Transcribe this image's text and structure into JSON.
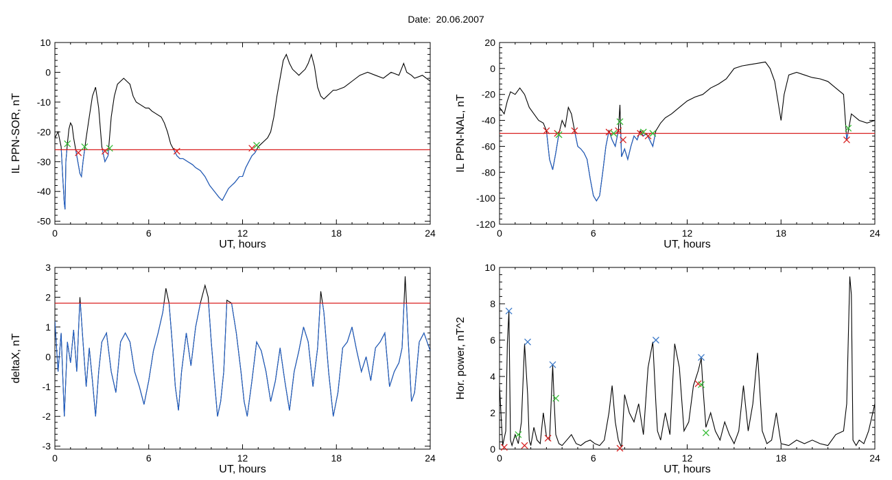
{
  "title": "Date:  20.06.2007",
  "colors": {
    "trace": "#000000",
    "below_threshold": "#1f5fc8",
    "threshold": "#d81e1e",
    "marker_red": "#d81e1e",
    "marker_green": "#33bb33",
    "marker_blue": "#3a78c8"
  },
  "chart_data": [
    {
      "type": "line",
      "xlabel": "UT, hours",
      "ylabel": "IL PPN-SOR, nT",
      "xlim": [
        0,
        24
      ],
      "ylim": [
        -51,
        10
      ],
      "xticks": [
        0,
        6,
        12,
        18,
        24
      ],
      "yticks": [
        -50,
        -40,
        -30,
        -20,
        -10,
        0,
        10
      ],
      "threshold": -26,
      "grid": false,
      "series": [
        {
          "x": [
            0,
            0.2,
            0.4,
            0.5,
            0.6,
            0.65,
            0.7,
            0.8,
            0.9,
            1.0,
            1.1,
            1.2,
            1.4,
            1.6,
            1.7,
            1.8,
            2.0,
            2.2,
            2.4,
            2.6,
            2.8,
            3.0,
            3.2,
            3.4,
            3.6,
            3.8,
            4.0,
            4.2,
            4.4,
            4.6,
            4.8,
            5.0,
            5.2,
            5.5,
            5.8,
            6.0,
            6.2,
            6.5,
            6.8,
            7.0,
            7.2,
            7.4,
            7.6,
            7.8,
            8.0,
            8.2,
            8.5,
            8.8,
            9.0,
            9.3,
            9.6,
            9.9,
            10.2,
            10.5,
            10.7,
            10.9,
            11.1,
            11.3,
            11.5,
            11.8,
            12.0,
            12.2,
            12.4,
            12.6,
            12.8,
            13.0,
            13.2,
            13.4,
            13.6,
            13.8,
            14.0,
            14.2,
            14.4,
            14.6,
            14.8,
            15.0,
            15.2,
            15.4,
            15.6,
            15.8,
            16.0,
            16.2,
            16.4,
            16.6,
            16.8,
            17.0,
            17.2,
            17.4,
            17.6,
            17.8,
            18.0,
            18.5,
            19.0,
            19.5,
            20.0,
            20.5,
            21.0,
            21.5,
            22.0,
            22.3,
            22.5,
            22.8,
            23.0,
            23.5,
            24.0
          ],
          "y": [
            -22,
            -20,
            -25,
            -35,
            -44,
            -46,
            -30,
            -24,
            -19,
            -17,
            -18,
            -22,
            -28,
            -34,
            -35,
            -30,
            -22,
            -15,
            -8,
            -5,
            -12,
            -25,
            -30,
            -28,
            -15,
            -8,
            -4,
            -3,
            -2,
            -3,
            -4,
            -8,
            -10,
            -11,
            -12,
            -12,
            -13,
            -14,
            -15,
            -17,
            -20,
            -24,
            -26,
            -28,
            -29,
            -29,
            -30,
            -31,
            -32,
            -33,
            -35,
            -38,
            -40,
            -42,
            -43,
            -41,
            -39,
            -38,
            -37,
            -35,
            -35,
            -32,
            -30,
            -28,
            -27,
            -25,
            -24,
            -23,
            -22,
            -20,
            -15,
            -8,
            -2,
            4,
            6,
            3,
            1,
            0,
            -1,
            0,
            1,
            3,
            6,
            2,
            -5,
            -8,
            -9,
            -8,
            -7,
            -6,
            -6,
            -5,
            -3,
            -1,
            0,
            -1,
            -2,
            0,
            -1,
            3,
            0,
            -1,
            -2,
            -1,
            -3
          ]
        }
      ],
      "markers": [
        {
          "x": 0.8,
          "y": -24,
          "color": "green"
        },
        {
          "x": 1.5,
          "y": -27,
          "color": "red"
        },
        {
          "x": 1.9,
          "y": -25,
          "color": "green"
        },
        {
          "x": 3.2,
          "y": -26.5,
          "color": "red"
        },
        {
          "x": 3.5,
          "y": -25.5,
          "color": "green"
        },
        {
          "x": 7.8,
          "y": -26.5,
          "color": "red"
        },
        {
          "x": 12.6,
          "y": -25.5,
          "color": "red"
        },
        {
          "x": 12.9,
          "y": -24.5,
          "color": "green"
        }
      ]
    },
    {
      "type": "line",
      "xlabel": "UT, hours",
      "ylabel": "IL PPN-NAL, nT",
      "xlim": [
        0,
        24
      ],
      "ylim": [
        -120,
        20
      ],
      "xticks": [
        0,
        6,
        12,
        18,
        24
      ],
      "yticks": [
        -120,
        -100,
        -80,
        -60,
        -40,
        -20,
        0,
        20
      ],
      "threshold": -50,
      "grid": false,
      "series": [
        {
          "x": [
            0,
            0.3,
            0.5,
            0.7,
            1.0,
            1.3,
            1.6,
            1.9,
            2.2,
            2.5,
            2.8,
            3.0,
            3.2,
            3.4,
            3.6,
            3.8,
            4.0,
            4.2,
            4.4,
            4.6,
            4.8,
            5.0,
            5.2,
            5.4,
            5.6,
            5.8,
            6.0,
            6.2,
            6.4,
            6.6,
            6.8,
            7.0,
            7.2,
            7.4,
            7.6,
            7.7,
            7.8,
            8.0,
            8.2,
            8.4,
            8.6,
            8.8,
            9.0,
            9.2,
            9.4,
            9.6,
            9.8,
            10.0,
            10.3,
            10.6,
            11.0,
            11.5,
            12.0,
            12.5,
            13.0,
            13.5,
            14.0,
            14.5,
            15.0,
            15.5,
            16.0,
            16.5,
            17.0,
            17.3,
            17.6,
            17.8,
            18.0,
            18.2,
            18.5,
            19.0,
            19.5,
            20.0,
            20.5,
            21.0,
            21.5,
            22.0,
            22.2,
            22.5,
            23.0,
            23.5,
            24.0
          ],
          "y": [
            -30,
            -35,
            -25,
            -18,
            -20,
            -15,
            -20,
            -30,
            -35,
            -40,
            -42,
            -48,
            -70,
            -78,
            -65,
            -50,
            -40,
            -45,
            -30,
            -35,
            -48,
            -60,
            -62,
            -65,
            -70,
            -85,
            -98,
            -102,
            -98,
            -80,
            -60,
            -48,
            -55,
            -60,
            -48,
            -28,
            -68,
            -62,
            -70,
            -60,
            -52,
            -55,
            -48,
            -52,
            -50,
            -55,
            -60,
            -48,
            -42,
            -38,
            -35,
            -30,
            -25,
            -22,
            -20,
            -15,
            -12,
            -8,
            0,
            2,
            3,
            4,
            5,
            0,
            -10,
            -25,
            -40,
            -20,
            -5,
            -3,
            -5,
            -7,
            -8,
            -10,
            -15,
            -20,
            -55,
            -35,
            -40,
            -42,
            -40
          ]
        }
      ],
      "markers": [
        {
          "x": 3.0,
          "y": -48,
          "color": "red"
        },
        {
          "x": 3.7,
          "y": -50,
          "color": "red"
        },
        {
          "x": 3.8,
          "y": -51,
          "color": "green"
        },
        {
          "x": 4.8,
          "y": -48,
          "color": "red"
        },
        {
          "x": 7.0,
          "y": -49,
          "color": "red"
        },
        {
          "x": 7.3,
          "y": -50,
          "color": "green"
        },
        {
          "x": 7.6,
          "y": -48,
          "color": "red"
        },
        {
          "x": 7.7,
          "y": -41,
          "color": "green"
        },
        {
          "x": 7.9,
          "y": -55,
          "color": "red"
        },
        {
          "x": 9.0,
          "y": -50,
          "color": "red"
        },
        {
          "x": 9.2,
          "y": -49,
          "color": "green"
        },
        {
          "x": 9.5,
          "y": -52,
          "color": "red"
        },
        {
          "x": 9.8,
          "y": -50,
          "color": "green"
        },
        {
          "x": 22.2,
          "y": -55,
          "color": "red"
        },
        {
          "x": 22.3,
          "y": -46,
          "color": "green"
        }
      ]
    },
    {
      "type": "line",
      "xlabel": "UT, hours",
      "ylabel": "deltaX, nT",
      "xlim": [
        0,
        24
      ],
      "ylim": [
        -3.1,
        3
      ],
      "xticks": [
        0,
        6,
        12,
        18,
        24
      ],
      "yticks": [
        -3,
        -2,
        -1,
        0,
        1,
        2,
        3
      ],
      "threshold": 1.8,
      "grid": false,
      "series": [
        {
          "x": [
            0,
            0.2,
            0.4,
            0.6,
            0.8,
            1.0,
            1.2,
            1.4,
            1.6,
            1.8,
            2.0,
            2.2,
            2.4,
            2.6,
            2.8,
            3.0,
            3.3,
            3.6,
            3.9,
            4.2,
            4.5,
            4.8,
            5.1,
            5.4,
            5.7,
            6.0,
            6.3,
            6.6,
            6.9,
            7.1,
            7.3,
            7.5,
            7.7,
            7.9,
            8.1,
            8.4,
            8.7,
            9.0,
            9.3,
            9.6,
            9.8,
            10.0,
            10.2,
            10.4,
            10.6,
            10.8,
            11.0,
            11.3,
            11.6,
            11.9,
            12.1,
            12.3,
            12.6,
            12.9,
            13.2,
            13.5,
            13.8,
            14.1,
            14.4,
            14.7,
            15.0,
            15.3,
            15.6,
            15.9,
            16.2,
            16.5,
            16.8,
            17.0,
            17.2,
            17.5,
            17.8,
            18.1,
            18.4,
            18.7,
            19.0,
            19.3,
            19.6,
            19.9,
            20.2,
            20.5,
            20.8,
            21.1,
            21.4,
            21.7,
            22.0,
            22.2,
            22.4,
            22.6,
            22.8,
            23.0,
            23.3,
            23.6,
            24.0
          ],
          "y": [
            1.2,
            -0.5,
            0.8,
            -2.0,
            0.5,
            -0.2,
            0.9,
            -0.5,
            2.0,
            0.5,
            -1.0,
            0.3,
            -0.8,
            -2.0,
            -0.5,
            0.5,
            0.8,
            -0.5,
            -1.2,
            0.5,
            0.8,
            0.5,
            -0.5,
            -1.0,
            -1.6,
            -0.8,
            0.2,
            0.8,
            1.5,
            2.3,
            1.8,
            0.5,
            -1.0,
            -1.8,
            -0.5,
            0.8,
            -0.3,
            1.0,
            1.8,
            2.4,
            2.0,
            0.5,
            -0.8,
            -2.0,
            -1.5,
            -0.5,
            1.9,
            1.8,
            0.8,
            -0.5,
            -1.5,
            -2.0,
            -0.8,
            0.5,
            0.2,
            -0.5,
            -1.5,
            -0.8,
            0.3,
            -0.8,
            -1.8,
            -0.5,
            0.2,
            1.0,
            0.5,
            -1.0,
            0.3,
            2.2,
            1.5,
            -0.5,
            -2.0,
            -1.2,
            0.3,
            0.5,
            1.0,
            0.2,
            -0.5,
            0.0,
            -0.8,
            0.3,
            0.5,
            0.8,
            -1.0,
            -0.5,
            -0.2,
            0.3,
            2.7,
            0.5,
            -1.5,
            -1.2,
            0.5,
            0.8,
            0.2
          ]
        }
      ],
      "markers": []
    },
    {
      "type": "line",
      "xlabel": "UT, hours",
      "ylabel": "Hor. power, nT^2",
      "xlim": [
        0,
        24
      ],
      "ylim": [
        0,
        10
      ],
      "xticks": [
        0,
        6,
        12,
        18,
        24
      ],
      "yticks": [
        0,
        2,
        4,
        6,
        8,
        10
      ],
      "threshold": null,
      "grid": false,
      "series": [
        {
          "x": [
            0,
            0.2,
            0.4,
            0.5,
            0.6,
            0.7,
            0.8,
            1.0,
            1.2,
            1.4,
            1.6,
            1.8,
            1.9,
            2.0,
            2.2,
            2.4,
            2.6,
            2.8,
            3.0,
            3.2,
            3.4,
            3.5,
            3.6,
            3.8,
            4.0,
            4.3,
            4.6,
            4.9,
            5.2,
            5.5,
            5.8,
            6.1,
            6.4,
            6.7,
            7.0,
            7.2,
            7.4,
            7.6,
            7.8,
            8.0,
            8.3,
            8.6,
            8.9,
            9.2,
            9.5,
            9.8,
            10.0,
            10.1,
            10.3,
            10.6,
            10.9,
            11.2,
            11.5,
            11.8,
            12.1,
            12.4,
            12.7,
            12.9,
            13.0,
            13.2,
            13.5,
            13.8,
            14.1,
            14.4,
            14.7,
            15.0,
            15.3,
            15.6,
            15.9,
            16.2,
            16.5,
            16.8,
            17.1,
            17.4,
            17.7,
            18.0,
            18.5,
            19.0,
            19.5,
            20.0,
            20.5,
            21.0,
            21.5,
            22.0,
            22.2,
            22.4,
            22.5,
            22.6,
            22.8,
            23.0,
            23.3,
            23.6,
            24.0
          ],
          "y": [
            3.5,
            0.2,
            1.0,
            5.8,
            7.6,
            0.5,
            0.2,
            0.8,
            0.3,
            1.5,
            5.8,
            3.0,
            0.5,
            0.2,
            1.2,
            0.5,
            0.3,
            2.0,
            0.7,
            0.5,
            4.6,
            2.5,
            0.8,
            0.3,
            0.2,
            0.5,
            0.8,
            0.3,
            0.2,
            0.4,
            0.5,
            0.3,
            0.2,
            0.5,
            2.0,
            3.5,
            1.5,
            0.5,
            0.1,
            3.0,
            2.0,
            1.5,
            2.5,
            0.8,
            4.5,
            5.9,
            2.5,
            1.0,
            0.5,
            2.0,
            0.8,
            5.8,
            4.5,
            1.0,
            1.5,
            3.5,
            4.3,
            5.0,
            3.5,
            1.2,
            2.0,
            1.0,
            0.5,
            1.5,
            0.8,
            0.3,
            1.0,
            3.5,
            1.0,
            2.5,
            5.3,
            1.0,
            0.3,
            0.5,
            2.0,
            0.3,
            0.2,
            0.5,
            0.3,
            0.5,
            0.3,
            0.2,
            0.8,
            1.0,
            2.5,
            9.5,
            8.5,
            0.5,
            0.2,
            0.5,
            0.3,
            1.0,
            2.5
          ]
        }
      ],
      "markers": [
        {
          "x": 0.6,
          "y": 7.6,
          "color": "blue"
        },
        {
          "x": 0.3,
          "y": 0.1,
          "color": "red"
        },
        {
          "x": 1.2,
          "y": 0.8,
          "color": "green"
        },
        {
          "x": 1.6,
          "y": 0.2,
          "color": "red"
        },
        {
          "x": 1.8,
          "y": 5.9,
          "color": "blue"
        },
        {
          "x": 3.1,
          "y": 0.6,
          "color": "red"
        },
        {
          "x": 3.4,
          "y": 4.65,
          "color": "blue"
        },
        {
          "x": 3.6,
          "y": 2.8,
          "color": "green"
        },
        {
          "x": 7.7,
          "y": 0.05,
          "color": "red"
        },
        {
          "x": 10.0,
          "y": 6.0,
          "color": "blue"
        },
        {
          "x": 12.7,
          "y": 3.6,
          "color": "red"
        },
        {
          "x": 12.9,
          "y": 5.05,
          "color": "blue"
        },
        {
          "x": 12.9,
          "y": 3.55,
          "color": "green"
        },
        {
          "x": 13.2,
          "y": 0.9,
          "color": "green"
        }
      ]
    }
  ]
}
